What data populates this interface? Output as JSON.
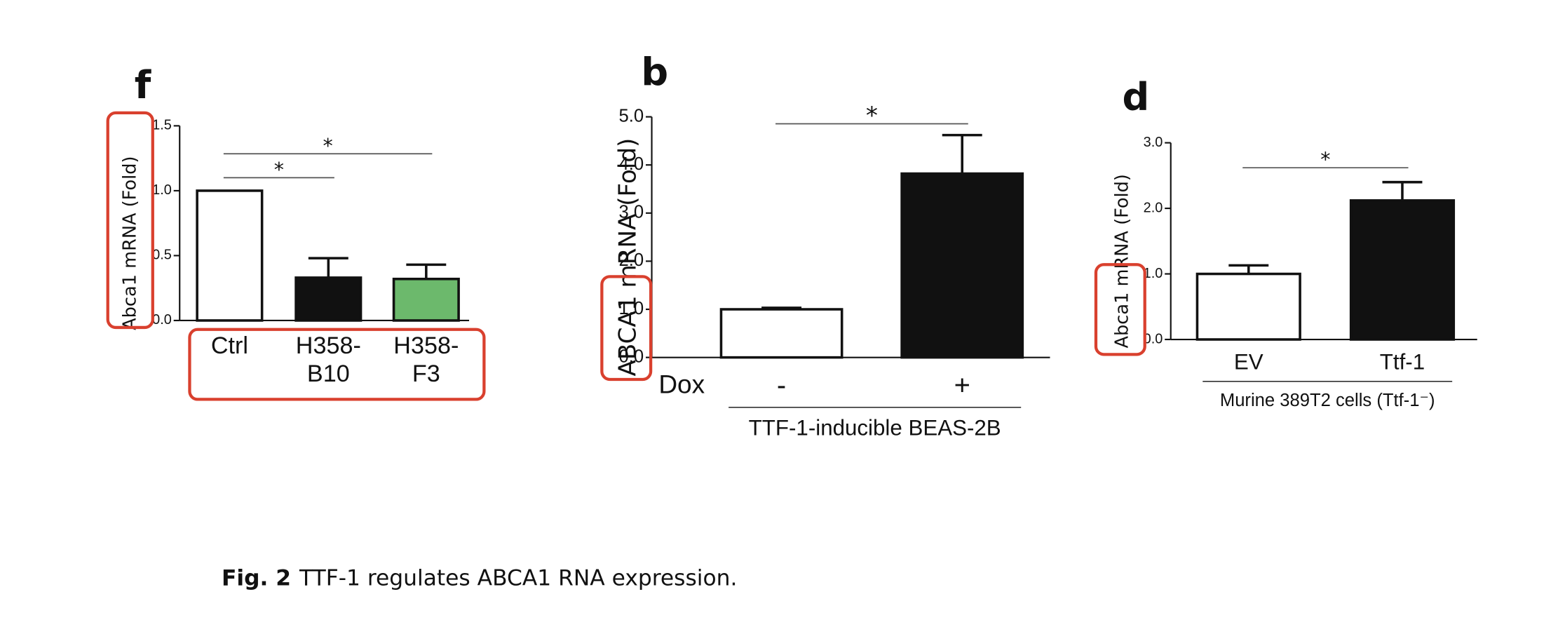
{
  "chart_data": [
    {
      "type": "bar",
      "panel_label": "f",
      "ylabel": "Abca1 mRNA (Fold)",
      "categories": [
        "Ctrl",
        "H358-\nB10",
        "H358-\nF3"
      ],
      "values": [
        1.0,
        0.33,
        0.32
      ],
      "errors": [
        0,
        0.15,
        0.11
      ],
      "colors": [
        "#ffffff",
        "#111111",
        "#6cb96c"
      ],
      "ylim": [
        0,
        1.5
      ],
      "yticks": [
        {
          "value": 0,
          "label": "0.0"
        },
        0.5,
        {
          "value": 1,
          "label": "1.0"
        },
        1.5
      ],
      "significance": [
        {
          "from": 0,
          "to": 1,
          "label": "*"
        },
        {
          "from": 0,
          "to": 2,
          "label": "*"
        }
      ]
    },
    {
      "type": "bar",
      "panel_label": "b",
      "ylabel": "ABCA1 mRNA (Fold)",
      "x_row_label": "Dox",
      "xlabel": "TTF-1-inducible BEAS-2B",
      "categories": [
        "-",
        "+"
      ],
      "values": [
        1.0,
        3.82
      ],
      "errors": [
        0.03,
        0.8
      ],
      "colors": [
        "#ffffff",
        "#111111"
      ],
      "ylim": [
        0,
        5
      ],
      "yticks": [
        {
          "value": 0,
          "label": "0.0"
        },
        {
          "value": 1,
          "label": "1.0"
        },
        {
          "value": 2,
          "label": "2.0"
        },
        {
          "value": 3,
          "label": "3.0"
        },
        {
          "value": 4,
          "label": "4.0"
        },
        {
          "value": 5,
          "label": "5.0"
        }
      ],
      "significance": [
        {
          "from": 0,
          "to": 1,
          "label": "*"
        }
      ]
    },
    {
      "type": "bar",
      "panel_label": "d",
      "ylabel": "Abca1 mRNA (Fold)",
      "xlabel": "Murine 389T2 cells (Ttf-1⁻)",
      "categories": [
        "EV",
        "Ttf-1"
      ],
      "values": [
        1.0,
        2.12
      ],
      "errors": [
        0.13,
        0.28
      ],
      "colors": [
        "#ffffff",
        "#111111"
      ],
      "ylim": [
        0,
        3
      ],
      "yticks": [
        {
          "value": 0,
          "label": "0.0"
        },
        {
          "value": 1,
          "label": "1.0"
        },
        {
          "value": 2,
          "label": "2.0"
        },
        {
          "value": 3,
          "label": "3.0"
        }
      ],
      "significance": [
        {
          "from": 0,
          "to": 1,
          "label": "*"
        }
      ]
    }
  ],
  "caption": {
    "label": "Fig. 2",
    "text": "TTF-1 regulates ABCA1 RNA expression."
  }
}
